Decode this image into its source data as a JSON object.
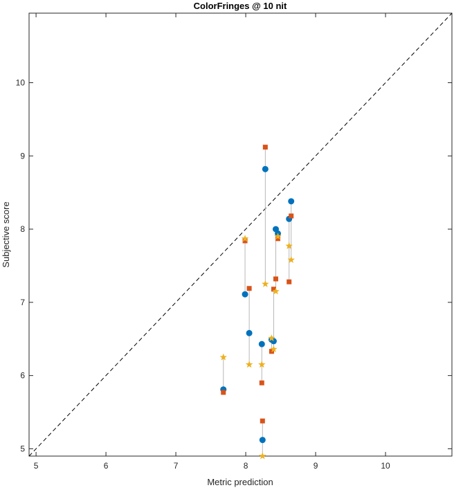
{
  "chart_data": {
    "type": "scatter",
    "title": "ColorFringes @ 10 nit",
    "xlabel": "Metric prediction",
    "ylabel": "Subjective score",
    "xlim": [
      4.9,
      10.95
    ],
    "ylim": [
      4.9,
      10.95
    ],
    "xticks": [
      5,
      6,
      7,
      8,
      9,
      10
    ],
    "yticks": [
      5,
      6,
      7,
      8,
      9,
      10
    ],
    "grid": false,
    "reference_line": {
      "style": "dashed",
      "from": [
        4.9,
        4.9
      ],
      "to": [
        10.95,
        10.95
      ]
    },
    "colors": {
      "circle": "#0072BD",
      "square": "#D95319",
      "star": "#EDB120",
      "connector": "#B8B8B8",
      "axis": "#262626"
    },
    "series": [
      {
        "marker": "circle",
        "x": [
          7.68,
          7.99,
          8.05,
          8.23,
          8.24,
          8.28,
          8.37,
          8.4,
          8.43,
          8.46,
          8.62,
          8.65
        ],
        "y": [
          5.81,
          7.11,
          6.58,
          6.43,
          5.12,
          8.82,
          6.49,
          6.47,
          8.0,
          7.94,
          8.14,
          8.38
        ]
      },
      {
        "marker": "square",
        "x": [
          7.68,
          7.99,
          8.05,
          8.23,
          8.24,
          8.28,
          8.37,
          8.4,
          8.43,
          8.46,
          8.62,
          8.65
        ],
        "y": [
          5.77,
          7.84,
          7.19,
          5.9,
          5.38,
          9.12,
          6.33,
          7.18,
          7.32,
          7.87,
          7.28,
          8.18
        ]
      },
      {
        "marker": "star",
        "x": [
          7.68,
          7.99,
          8.05,
          8.23,
          8.24,
          8.28,
          8.37,
          8.4,
          8.43,
          8.46,
          8.62,
          8.65
        ],
        "y": [
          6.25,
          7.87,
          6.15,
          6.15,
          4.9,
          7.25,
          6.51,
          6.36,
          7.15,
          7.9,
          7.77,
          7.58
        ]
      }
    ]
  }
}
